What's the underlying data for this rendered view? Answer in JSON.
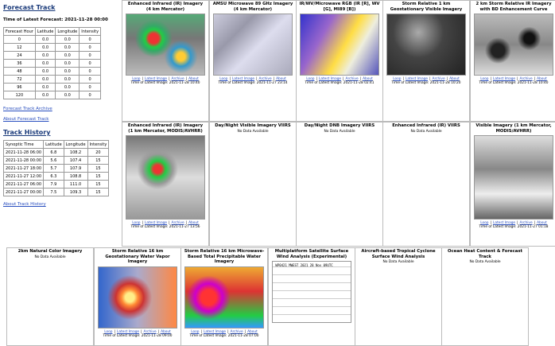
{
  "forecast_track": {
    "title": "Forecast Track",
    "latest": "Time of Latest Forecast: 2021-11-28 00:00",
    "headers": [
      "Forecast Hour",
      "Latitude",
      "Longitude",
      "Intensity"
    ],
    "rows": [
      [
        "0",
        "0.0",
        "0.0",
        "0"
      ],
      [
        "12",
        "0.0",
        "0.0",
        "0"
      ],
      [
        "24",
        "0.0",
        "0.0",
        "0"
      ],
      [
        "36",
        "0.0",
        "0.0",
        "0"
      ],
      [
        "48",
        "0.0",
        "0.0",
        "0"
      ],
      [
        "72",
        "0.0",
        "0.0",
        "0"
      ],
      [
        "96",
        "0.0",
        "0.0",
        "0"
      ],
      [
        "120",
        "0.0",
        "0.0",
        "0"
      ]
    ],
    "links": [
      "Forecast Track Archive",
      "About Forecast Track"
    ]
  },
  "track_history": {
    "title": "Track History",
    "headers": [
      "Synoptic Time",
      "Latitude",
      "Longitude",
      "Intensity"
    ],
    "rows": [
      [
        "2021-11-28 06:00",
        "6.8",
        "108.2",
        "20"
      ],
      [
        "2021-11-28 00:00",
        "5.6",
        "107.4",
        "15"
      ],
      [
        "2021-11-27 18:00",
        "5.7",
        "107.9",
        "15"
      ],
      [
        "2021-11-27 12:00",
        "6.3",
        "108.8",
        "15"
      ],
      [
        "2021-11-27 06:00",
        "7.9",
        "111.0",
        "15"
      ],
      [
        "2021-11-27 00:00",
        "7.5",
        "109.3",
        "15"
      ]
    ],
    "links": [
      "About Track History"
    ]
  },
  "link_separator": "|",
  "products": [
    {
      "title": "Enhanced Infrared (IR) Imagery (4 km Mercator)",
      "links": [
        "Loop",
        "Latest Image",
        "Archive",
        "About"
      ],
      "time": "Time of Latest Image: 2021-11-28 10:40"
    },
    {
      "title": "AMSU Microwave 89 GHz Imagery (4 km Mercator)",
      "links": [
        "Loop",
        "Latest Image",
        "Archive",
        "About"
      ],
      "time": "Time of Latest Image: 2021-11-27 23:14"
    },
    {
      "title": "IR/WV/Microwave RGB (IR [R], WV [G], MI89 [B])",
      "links": [
        "Loop",
        "Latest Image",
        "Archive",
        "About"
      ],
      "time": "Time of Latest Image: 2021-11-28 02:41"
    },
    {
      "title": "Storm Relative 1 km Geostationary Visible Imagery",
      "links": [
        "Loop",
        "Latest Image",
        "Archive",
        "About"
      ],
      "time": "Time of Latest Image: 2021-11-28 10:20"
    },
    {
      "title": "2 km Storm Relative IR Imagery with BD Enhancement Curve",
      "links": [
        "Loop",
        "Latest Image",
        "Archive",
        "About"
      ],
      "time": "Time of Latest Image: 2021-11-28 10:40"
    },
    {
      "title": "Enhanced Infrared (IR) Imagery (1 km Mercator, MODIS/AVHRR)",
      "links": [
        "Loop",
        "Latest Image",
        "Archive",
        "About"
      ],
      "time": "Time of Latest Image: 2021-11-27 13:56"
    },
    {
      "title": "Day/Night Visible Imagery VIIRS",
      "status": "No Data Available"
    },
    {
      "title": "Day/Night DNB Imagery VIIRS",
      "status": "No Data Available"
    },
    {
      "title": "Enhanced Infrared (IR) VIIRS",
      "status": "No Data Available"
    },
    {
      "title": "Visible Imagery (1 km Mercator, MODIS/AVHRR)",
      "links": [
        "Loop",
        "Latest Image",
        "Archive",
        "About"
      ],
      "time": "Time of Latest Image: 2021-11-27 01:18"
    },
    {
      "title": "2km Natural Color Imagery",
      "status": "No Data Available"
    },
    {
      "title": "Storm Relative 16 km Geostationary Water Vapor Imagery",
      "links": [
        "Loop",
        "Latest Image",
        "Archive",
        "About"
      ],
      "time": "Time of Latest Image: 2021-11-28 09:00"
    },
    {
      "title": "Storm Relative 16 km Microwave-Based Total Precipitable Water Imagery",
      "links": [
        "Loop",
        "Latest Image",
        "Archive",
        "About"
      ],
      "time": "Time of Latest Image: 2021-11-28 07:00"
    },
    {
      "title": "Multiplatform Satellite Surface Wind Analysis (Experimental)",
      "image_text": "WP0421   MWEST   2021  28 Nov  09UTC"
    },
    {
      "title": "Aircraft-based Tropical Cyclone Surface Wind Analysis",
      "status": "No Data Available"
    },
    {
      "title": "Ocean Heat Content & Forecast Track",
      "status": "No Data Available"
    }
  ]
}
